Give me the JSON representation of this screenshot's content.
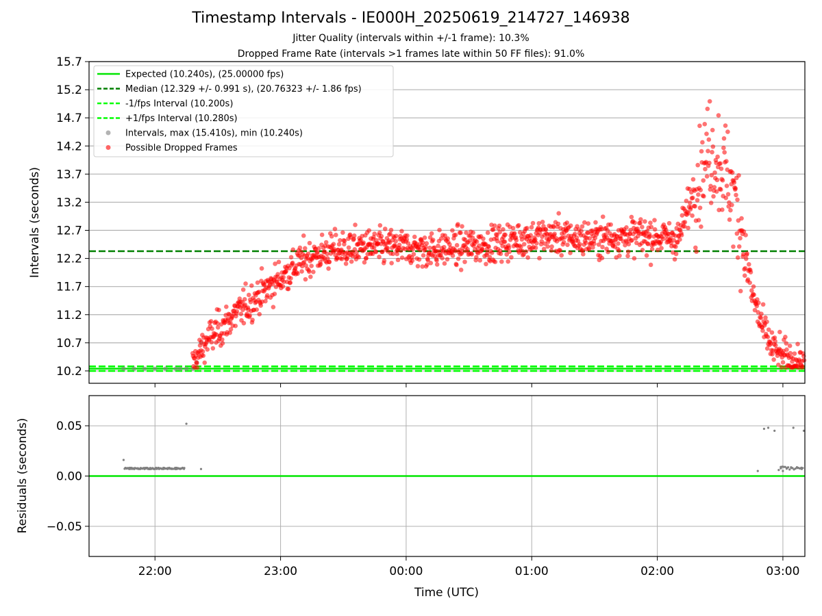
{
  "title": "Timestamp Intervals - IE000H_20250619_214727_146938",
  "subtitle_1": "Jitter Quality (intervals within +/-1 frame): 10.3%",
  "subtitle_2": "Dropped Frame Rate (intervals >1 frames late within 50 FF files): 91.0%",
  "colors": {
    "expected": "#00e600",
    "median": "#008000",
    "limit": "#00ff00",
    "normal_points": "#808080",
    "dropped_points": "#ff0000",
    "grid": "#b0b0b0"
  },
  "chart_data": [
    {
      "type": "scatter",
      "panel": "intervals",
      "ylabel": "Intervals (seconds)",
      "xlabel": "",
      "x_unit": "minutes after 21:00 UTC",
      "xlim": [
        28.5,
        370.5
      ],
      "ylim": [
        9.98,
        15.7
      ],
      "y_ticks": [
        "10.2",
        "10.7",
        "11.2",
        "11.7",
        "12.2",
        "12.7",
        "13.2",
        "13.7",
        "14.2",
        "14.7",
        "15.2",
        "15.7"
      ],
      "y_tick_values": [
        10.2,
        10.7,
        11.2,
        11.7,
        12.2,
        12.7,
        13.2,
        13.7,
        14.2,
        14.7,
        15.2,
        15.7
      ],
      "grid": "horizontal",
      "legend_position": "top-left",
      "legend": [
        "Expected (10.240s), (25.00000 fps)",
        "Median (12.329 +/- 0.991 s), (20.76323 +/- 1.86 fps)",
        "-1/fps Interval (10.200s)",
        "+1/fps Interval (10.280s)",
        "Intervals, max (15.410s), min (10.240s)",
        "Possible Dropped Frames"
      ],
      "lines": [
        {
          "name": "Expected",
          "y": 10.24,
          "style": "solid"
        },
        {
          "name": "Median",
          "y": 12.329,
          "style": "dashed"
        },
        {
          "name": "-1/fps Interval",
          "y": 10.2,
          "style": "dashed"
        },
        {
          "name": "+1/fps Interval",
          "y": 10.28,
          "style": "dashed"
        }
      ],
      "series": [
        {
          "name": "Intervals",
          "x": [
            45,
            50,
            55,
            60,
            65,
            70,
            72,
            75,
            78,
            80,
            82
          ],
          "y": [
            10.24,
            10.24,
            10.24,
            10.24,
            10.24,
            10.24,
            10.24,
            10.24,
            10.24,
            10.35,
            10.7
          ]
        },
        {
          "name": "Possible Dropped Frames",
          "summary_trend": {
            "x": [
              78,
              85,
              100,
              115,
              130,
              145,
              160,
              175,
              190,
              205,
              220,
              235,
              250,
              265,
              280,
              295,
              310,
              320,
              325,
              330,
              335,
              340,
              345,
              350,
              355,
              360,
              365,
              370
            ],
            "y": [
              10.3,
              10.75,
              11.25,
              11.7,
              12.15,
              12.35,
              12.4,
              12.4,
              12.35,
              12.4,
              12.45,
              12.55,
              12.6,
              12.55,
              12.58,
              12.6,
              12.55,
              13.7,
              14.1,
              13.9,
              13.5,
              12.8,
              11.6,
              11.0,
              10.6,
              10.45,
              10.35,
              10.35
            ]
          }
        }
      ]
    },
    {
      "type": "scatter",
      "panel": "residuals",
      "ylabel": "Residuals (seconds)",
      "xlabel": "Time (UTC)",
      "xlim": [
        28.5,
        370.5
      ],
      "ylim": [
        -0.08,
        0.08
      ],
      "y_ticks": [
        "0.05",
        "0.00",
        "−0.05"
      ],
      "y_tick_values": [
        0.05,
        0.0,
        -0.05
      ],
      "x_ticks": [
        "22:00",
        "23:00",
        "00:00",
        "01:00",
        "02:00",
        "03:00"
      ],
      "x_tick_values": [
        60,
        120,
        180,
        240,
        300,
        360
      ],
      "grid": "both",
      "lines": [
        {
          "name": "Zero",
          "y": 0.0,
          "style": "solid"
        }
      ],
      "series": [
        {
          "name": "Residuals",
          "x": [
            45,
            46,
            48,
            50,
            52,
            55,
            58,
            60,
            62,
            64,
            66,
            68,
            70,
            72,
            74,
            75,
            82,
            348,
            351,
            353,
            356,
            358,
            359,
            360,
            362,
            364,
            365,
            367,
            369,
            370
          ],
          "y": [
            0.016,
            0.008,
            0.007,
            0.007,
            0.007,
            0.007,
            0.007,
            0.007,
            0.007,
            0.007,
            0.007,
            0.007,
            0.007,
            0.007,
            0.008,
            0.052,
            0.007,
            0.005,
            0.047,
            0.048,
            0.045,
            0.006,
            0.009,
            0.005,
            0.008,
            0.008,
            0.048,
            0.008,
            0.007,
            0.045
          ]
        }
      ]
    }
  ]
}
